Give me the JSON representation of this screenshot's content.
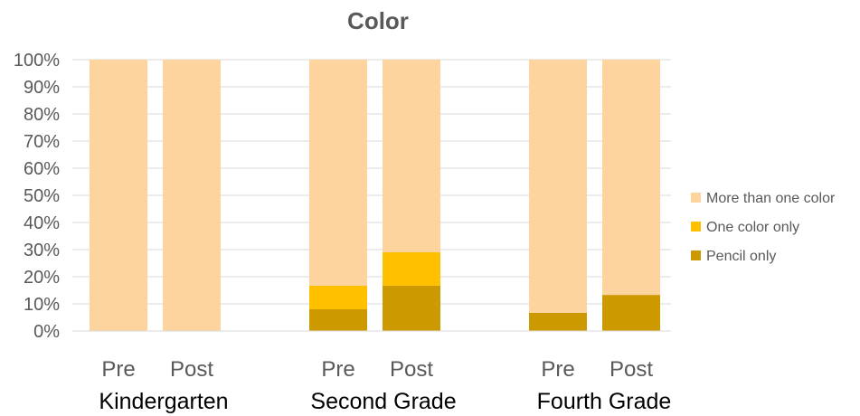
{
  "chart_data": {
    "type": "bar",
    "stacked": true,
    "title": "Color",
    "groups": [
      {
        "label": "Kindergarten",
        "bars": [
          "Pre",
          "Post"
        ]
      },
      {
        "label": "Second Grade",
        "bars": [
          "Pre",
          "Post"
        ]
      },
      {
        "label": "Fourth Grade",
        "bars": [
          "Pre",
          "Post"
        ]
      }
    ],
    "series": [
      {
        "name": "Pencil only",
        "color": "#CC9900",
        "values": [
          0,
          0,
          8,
          16.7,
          6.7,
          13.3
        ]
      },
      {
        "name": "One color only",
        "color": "#FFC000",
        "values": [
          0,
          0,
          8.7,
          12.3,
          0,
          0
        ]
      },
      {
        "name": "More than one color",
        "color": "#FDD49D",
        "values": [
          100,
          100,
          83.3,
          71,
          93.3,
          86.7
        ]
      }
    ],
    "yticks": [
      "0%",
      "10%",
      "20%",
      "30%",
      "40%",
      "50%",
      "60%",
      "70%",
      "80%",
      "90%",
      "100%"
    ],
    "ylim": [
      0,
      100
    ],
    "grid": true,
    "legend_position": "right"
  }
}
